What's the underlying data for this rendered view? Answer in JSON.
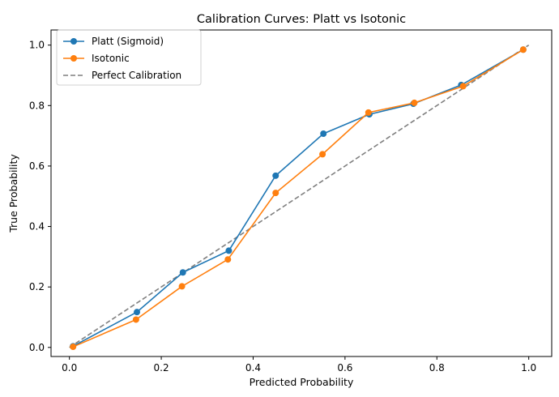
{
  "chart_data": {
    "type": "line",
    "title": "Calibration Curves: Platt vs Isotonic",
    "xlabel": "Predicted Probability",
    "ylabel": "True Probability",
    "xlim": [
      -0.04,
      1.05
    ],
    "ylim": [
      -0.03,
      1.05
    ],
    "xticks": [
      0.0,
      0.2,
      0.4,
      0.6,
      0.8,
      1.0
    ],
    "xtick_labels": [
      "0.0",
      "0.2",
      "0.4",
      "0.6",
      "0.8",
      "1.0"
    ],
    "yticks": [
      0.0,
      0.2,
      0.4,
      0.6,
      0.8,
      1.0
    ],
    "ytick_labels": [
      "0.0",
      "0.2",
      "0.4",
      "0.6",
      "0.8",
      "1.0"
    ],
    "grid": false,
    "legend_position": "top-left",
    "series": [
      {
        "name": "Platt (Sigmoid)",
        "color": "#1f77b4",
        "style": "solid",
        "marker": "circle",
        "x": [
          0.008,
          0.147,
          0.247,
          0.347,
          0.449,
          0.553,
          0.653,
          0.749,
          0.853,
          0.988
        ],
        "y": [
          0.004,
          0.117,
          0.248,
          0.32,
          0.568,
          0.707,
          0.771,
          0.806,
          0.868,
          0.985
        ]
      },
      {
        "name": "Isotonic",
        "color": "#ff7f0e",
        "style": "solid",
        "marker": "circle",
        "x": [
          0.008,
          0.145,
          0.245,
          0.345,
          0.449,
          0.551,
          0.651,
          0.751,
          0.857,
          0.988
        ],
        "y": [
          0.002,
          0.092,
          0.202,
          0.291,
          0.511,
          0.639,
          0.777,
          0.809,
          0.864,
          0.985
        ]
      },
      {
        "name": "Perfect Calibration",
        "color": "#7f7f7f",
        "style": "dashed",
        "marker": "none",
        "x": [
          0.0,
          1.0
        ],
        "y": [
          0.0,
          1.0
        ]
      }
    ]
  }
}
